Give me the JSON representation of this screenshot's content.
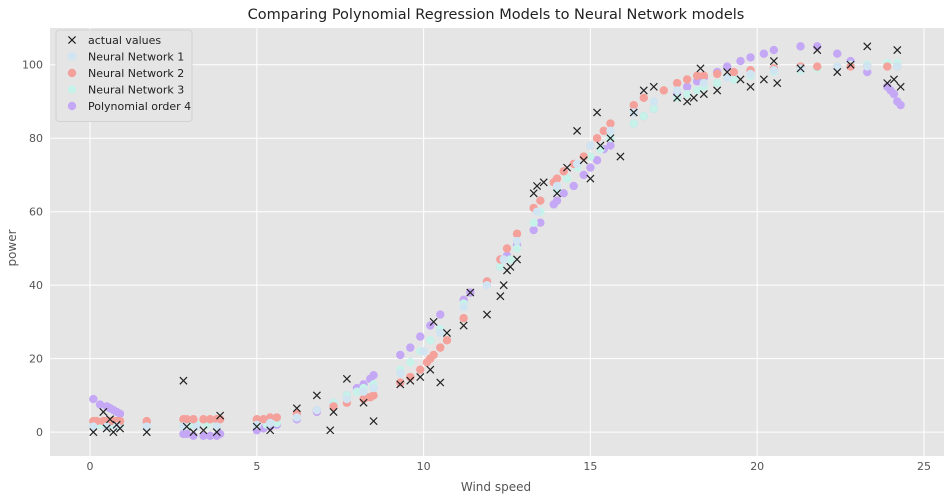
{
  "chart_data": {
    "type": "scatter",
    "title": "Comparing Polynomial Regression Models to Neural Network models",
    "xlabel": "Wind speed",
    "ylabel": "power",
    "xlim": [
      -1.2,
      25.6
    ],
    "ylim": [
      -6.5,
      110
    ],
    "xticks": [
      0,
      5,
      10,
      15,
      20,
      25
    ],
    "yticks": [
      0,
      20,
      40,
      60,
      80,
      100
    ],
    "grid": true,
    "legend_position": "top-left",
    "series": [
      {
        "name": "actual values",
        "marker": "x",
        "color": "#222222",
        "x": [
          0.1,
          0.4,
          0.5,
          0.6,
          0.7,
          0.8,
          0.9,
          1.7,
          2.8,
          2.9,
          3.1,
          3.4,
          3.8,
          3.9,
          5.0,
          5.4,
          6.2,
          6.8,
          7.2,
          7.3,
          7.7,
          8.2,
          8.5,
          9.3,
          9.6,
          9.9,
          10.2,
          10.3,
          10.5,
          10.7,
          11.2,
          11.4,
          11.9,
          12.3,
          12.4,
          12.5,
          12.6,
          12.8,
          13.3,
          13.4,
          13.6,
          14.0,
          14.3,
          14.6,
          14.8,
          15.0,
          15.2,
          15.3,
          15.6,
          15.9,
          16.3,
          16.6,
          16.9,
          17.6,
          17.9,
          18.1,
          18.3,
          18.4,
          18.8,
          19.1,
          19.5,
          19.8,
          20.2,
          20.5,
          20.6,
          21.3,
          21.8,
          22.4,
          22.8,
          23.3,
          23.9,
          24.1,
          24.2,
          24.3
        ],
        "y": [
          0,
          5.5,
          1,
          3.5,
          0,
          2,
          1,
          0,
          14,
          1.5,
          0,
          0.5,
          0,
          4.5,
          1.5,
          0.5,
          6.5,
          10,
          0.5,
          5.5,
          14.5,
          8,
          3,
          13,
          14,
          15,
          17,
          30,
          13.5,
          27,
          29,
          38,
          32,
          37,
          40,
          44,
          45,
          47,
          65,
          67,
          68,
          65,
          72,
          82,
          74,
          69,
          87,
          78,
          80,
          75,
          87,
          93,
          94,
          91,
          90,
          91,
          99,
          92,
          93,
          98,
          96,
          94,
          96,
          101,
          95,
          99,
          104,
          98,
          100,
          105,
          95,
          96,
          104,
          94
        ]
      },
      {
        "name": "Neural Network 1",
        "marker": "o",
        "color": "#d0e4f2",
        "x": [
          0.1,
          0.5,
          0.8,
          1.7,
          2.8,
          3.2,
          3.8,
          5.0,
          5.4,
          6.2,
          6.8,
          7.7,
          8.2,
          8.5,
          9.3,
          10.0,
          10.5,
          11.2,
          11.9,
          12.4,
          12.8,
          13.4,
          14.0,
          14.6,
          15.0,
          15.6,
          16.3,
          16.9,
          17.6,
          18.4,
          19.1,
          19.8,
          20.5,
          21.3,
          22.4,
          23.3,
          24.2
        ],
        "y": [
          1.5,
          1.5,
          1.5,
          1.5,
          1.5,
          1.5,
          1.5,
          2,
          2.5,
          4,
          6,
          9,
          11,
          12,
          16,
          22,
          27,
          34,
          40,
          47,
          52,
          60,
          67,
          73,
          78,
          82,
          87,
          90,
          93,
          95,
          96.5,
          97.5,
          98.5,
          99,
          99.5,
          99.5,
          99.5
        ]
      },
      {
        "name": "Neural Network 2",
        "marker": "o",
        "color": "#f4a09b",
        "x": [
          0.1,
          0.2,
          0.4,
          0.5,
          0.6,
          0.7,
          0.8,
          0.9,
          1.7,
          2.8,
          2.9,
          3.1,
          3.4,
          3.6,
          3.8,
          3.9,
          5.0,
          5.2,
          5.4,
          5.6,
          6.2,
          6.8,
          7.3,
          7.7,
          8.2,
          8.3,
          8.4,
          8.5,
          9.3,
          9.6,
          9.9,
          10.1,
          10.2,
          10.3,
          10.5,
          10.7,
          11.2,
          11.9,
          12.3,
          12.5,
          12.8,
          13.3,
          13.5,
          13.9,
          14.0,
          14.2,
          14.5,
          14.8,
          15.0,
          15.2,
          15.4,
          15.6,
          16.3,
          16.6,
          17.2,
          17.6,
          17.9,
          18.2,
          18.4,
          18.8,
          19.3,
          19.8,
          20.5,
          21.3,
          21.8,
          22.4,
          22.8,
          23.3,
          23.9,
          24.2
        ],
        "y": [
          3,
          3,
          3,
          3,
          3,
          3,
          3,
          3,
          3,
          3.5,
          3.5,
          3.5,
          3.5,
          3.5,
          3.5,
          3.5,
          3.5,
          3.5,
          4,
          4,
          5,
          6,
          7,
          8,
          9,
          9.5,
          9.5,
          10,
          13.5,
          15,
          17,
          19,
          20,
          21,
          23,
          25,
          31,
          41,
          47,
          50,
          54,
          61,
          63,
          68,
          69,
          71,
          73,
          75,
          78,
          80,
          82,
          84,
          89,
          91,
          93,
          95,
          96,
          97,
          97,
          97.5,
          98,
          98.5,
          99,
          99.5,
          99.5,
          99.5,
          99.5,
          99.5,
          99.5,
          99.5
        ]
      },
      {
        "name": "Neural Network 3",
        "marker": "o",
        "color": "#c6f2e9",
        "x": [
          0.1,
          0.3,
          0.5,
          0.7,
          0.9,
          1.7,
          2.8,
          3.0,
          3.2,
          3.5,
          3.8,
          5.0,
          5.3,
          5.6,
          6.2,
          6.8,
          7.3,
          7.7,
          8.0,
          8.2,
          8.5,
          9.3,
          9.6,
          9.9,
          10.2,
          10.5,
          11.2,
          11.9,
          12.3,
          12.6,
          12.8,
          13.3,
          13.5,
          14.0,
          14.3,
          14.6,
          15.0,
          15.3,
          15.6,
          16.3,
          16.6,
          16.9,
          17.6,
          17.9,
          18.2,
          18.4,
          18.8,
          19.3,
          19.8,
          20.5,
          21.3,
          21.8,
          22.4,
          22.8,
          23.3,
          23.9,
          24.2
        ],
        "y": [
          2,
          2,
          2,
          2,
          2,
          2,
          2,
          2,
          2,
          2,
          2,
          2,
          2,
          2.5,
          4,
          6,
          8,
          10,
          11,
          12,
          13,
          17,
          19,
          22,
          25,
          28,
          35,
          41,
          45,
          47,
          50,
          57,
          60,
          66,
          69,
          72,
          75,
          77,
          80,
          84,
          86,
          88,
          91,
          92,
          93,
          94,
          95,
          96,
          97,
          98,
          98.5,
          99,
          99.5,
          100,
          100,
          100.5,
          100.5
        ]
      },
      {
        "name": "Polynomial order 4",
        "marker": "o",
        "color": "#c5a8f5",
        "x": [
          0.1,
          0.3,
          0.5,
          0.6,
          0.7,
          0.8,
          0.9,
          1.7,
          2.8,
          2.9,
          3.1,
          3.4,
          3.6,
          3.8,
          3.9,
          5.0,
          5.2,
          5.4,
          5.6,
          6.2,
          6.8,
          7.3,
          7.7,
          8.0,
          8.2,
          8.4,
          8.5,
          9.3,
          9.6,
          9.9,
          10.2,
          10.5,
          11.2,
          11.4,
          11.9,
          12.3,
          12.5,
          12.8,
          13.3,
          13.5,
          13.9,
          14.0,
          14.2,
          14.5,
          14.8,
          15.0,
          15.2,
          15.4,
          15.6,
          16.3,
          16.6,
          16.9,
          17.6,
          17.9,
          18.2,
          18.4,
          18.8,
          19.1,
          19.5,
          19.8,
          20.2,
          20.5,
          21.3,
          21.8,
          22.4,
          22.8,
          23.3,
          23.9,
          24.0,
          24.1,
          24.2,
          24.3
        ],
        "y": [
          9,
          7.5,
          7,
          6.5,
          6,
          5.5,
          5,
          2.5,
          -0.5,
          -0.5,
          -1,
          -1,
          -1,
          -1,
          -0.5,
          0.5,
          1,
          1.5,
          2,
          3.5,
          5.5,
          8,
          10,
          12,
          13,
          14.5,
          15.5,
          21,
          23,
          26,
          29,
          32,
          36,
          38,
          41,
          45,
          48,
          51,
          55,
          57,
          62,
          63,
          65,
          67,
          70,
          72,
          74,
          77,
          78,
          84,
          86,
          88,
          92,
          94,
          95.5,
          96.5,
          98,
          99.5,
          101,
          102,
          103,
          104,
          105,
          105,
          103,
          101,
          98,
          94,
          93,
          92,
          90,
          89
        ]
      }
    ]
  }
}
